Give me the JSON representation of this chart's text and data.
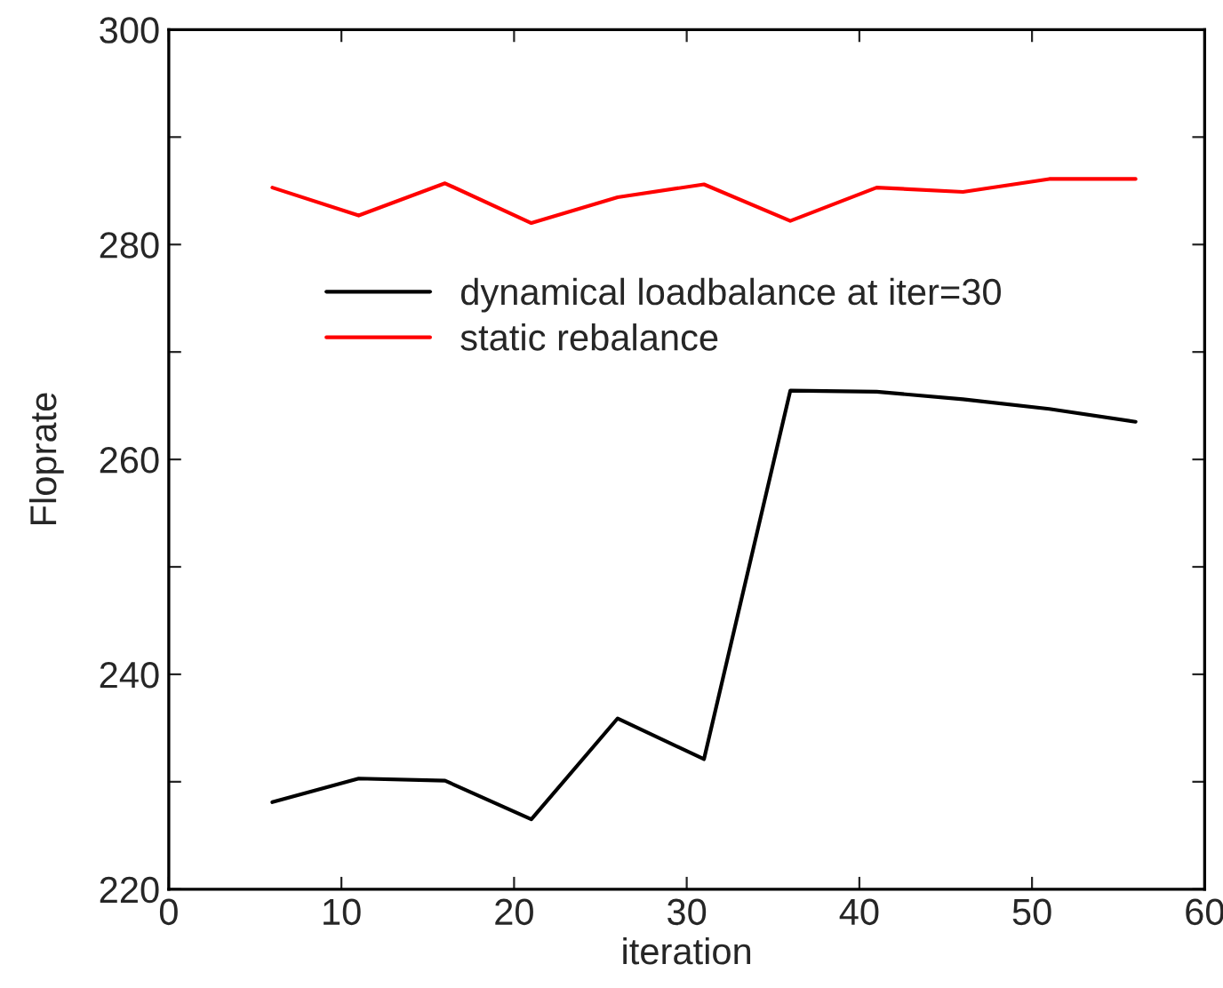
{
  "chart_data": {
    "type": "line",
    "xlabel": "iteration",
    "ylabel": "Floprate",
    "x": [
      6,
      11,
      16,
      21,
      26,
      31,
      36,
      41,
      46,
      51,
      56
    ],
    "series": [
      {
        "name": "dynamical loadbalance at iter=30",
        "color": "#000000",
        "values": [
          228.1,
          230.3,
          230.1,
          226.5,
          235.9,
          232.1,
          266.4,
          266.3,
          265.6,
          264.7,
          263.5
        ]
      },
      {
        "name": "static rebalance",
        "color": "#ff0000",
        "values": [
          285.3,
          282.7,
          285.7,
          282.0,
          284.4,
          285.6,
          282.2,
          285.3,
          284.9,
          286.1,
          286.1
        ]
      }
    ],
    "xlim": [
      0,
      60
    ],
    "xticks": [
      0,
      10,
      20,
      30,
      40,
      50,
      60
    ],
    "ylim": [
      220,
      300
    ],
    "yticks": [
      220,
      {
        "value": 230,
        "label": null
      },
      240,
      {
        "value": 250,
        "label": null
      },
      260,
      {
        "value": 270,
        "label": null
      },
      280,
      {
        "value": 290,
        "label": null
      },
      300
    ],
    "grid": false,
    "legend": "top left",
    "marker": "none",
    "line_style": "solid"
  }
}
